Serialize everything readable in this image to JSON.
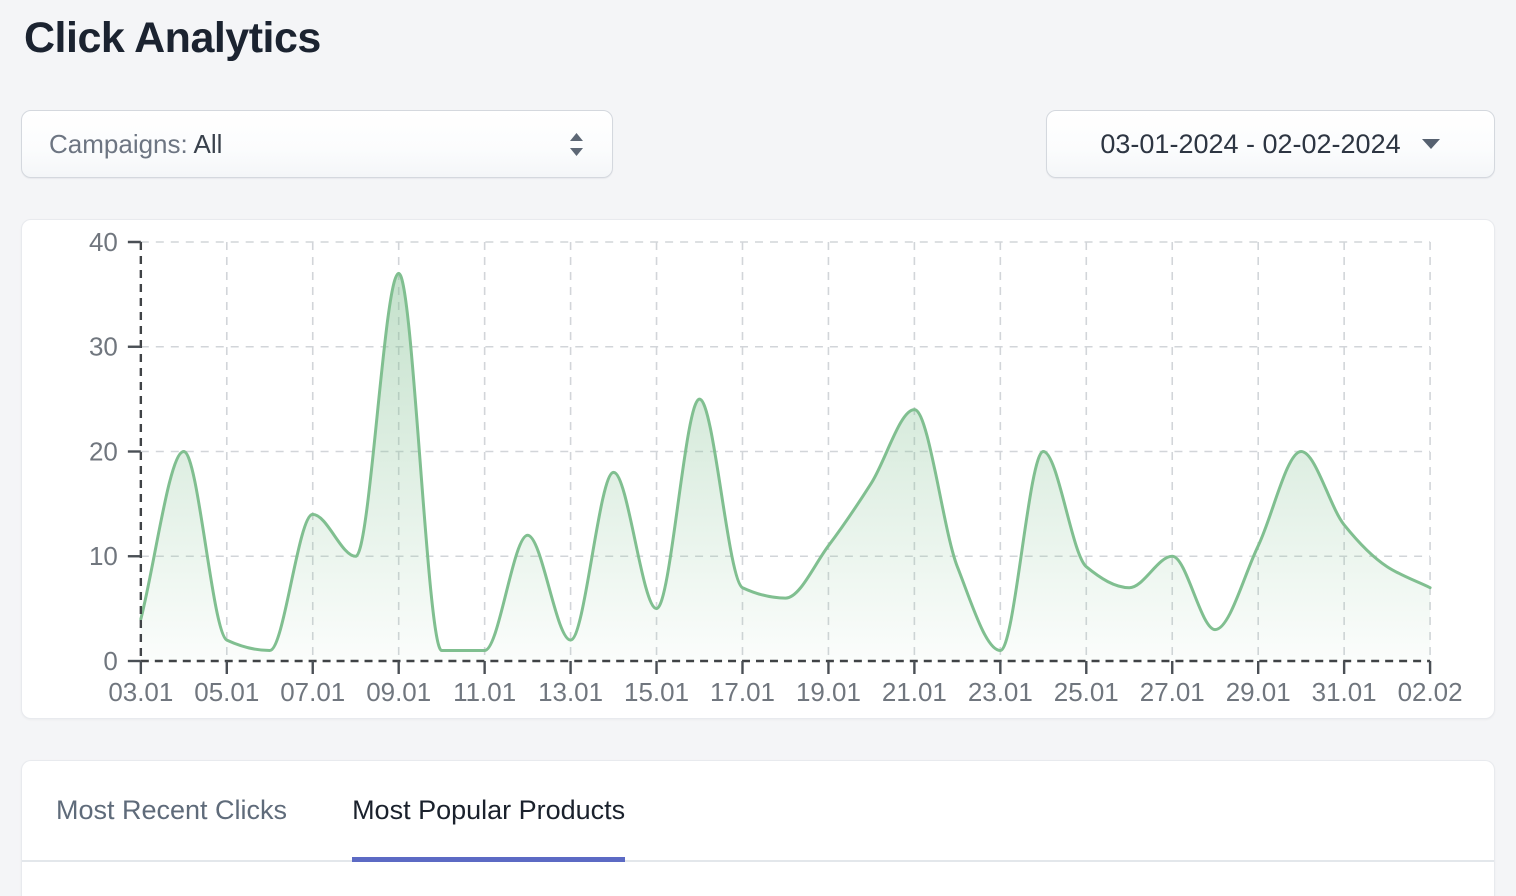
{
  "page": {
    "title": "Click Analytics"
  },
  "filters": {
    "campaigns": {
      "label": "Campaigns:",
      "value": "All"
    },
    "date_range": {
      "value": "03-01-2024 - 02-02-2024"
    }
  },
  "tabs": {
    "items": [
      {
        "label": "Most Recent Clicks",
        "active": false
      },
      {
        "label": "Most Popular Products",
        "active": true
      }
    ]
  },
  "colors": {
    "accent": "#5c6ac4",
    "line_green": "#80bf90",
    "title_text": "#1b2330",
    "muted_text": "#6d7582"
  },
  "chart_data": {
    "type": "area",
    "title": "",
    "xlabel": "",
    "ylabel": "",
    "x": [
      "03.01",
      "04.01",
      "05.01",
      "06.01",
      "07.01",
      "08.01",
      "09.01",
      "10.01",
      "11.01",
      "12.01",
      "13.01",
      "14.01",
      "15.01",
      "16.01",
      "17.01",
      "18.01",
      "19.01",
      "20.01",
      "21.01",
      "22.01",
      "23.01",
      "24.01",
      "25.01",
      "26.01",
      "27.01",
      "28.01",
      "29.01",
      "30.01",
      "31.01",
      "01.02",
      "02.02"
    ],
    "values": [
      4,
      20,
      2,
      1,
      14,
      10,
      37,
      1,
      1,
      12,
      2,
      18,
      5,
      25,
      7,
      6,
      11,
      17,
      24,
      9,
      1,
      20,
      9,
      7,
      10,
      3,
      11,
      20,
      13,
      9,
      7
    ],
    "x_label_every": 2,
    "ylim": [
      0,
      40
    ],
    "y_ticks": [
      0,
      10,
      20,
      30,
      40
    ],
    "grid": "dashed",
    "legend": "none",
    "curve": "smooth",
    "line_color": "#80bf90",
    "fill_gradient_top": "rgba(128,191,144,0.50)",
    "fill_gradient_bottom": "rgba(128,191,144,0.03)"
  }
}
